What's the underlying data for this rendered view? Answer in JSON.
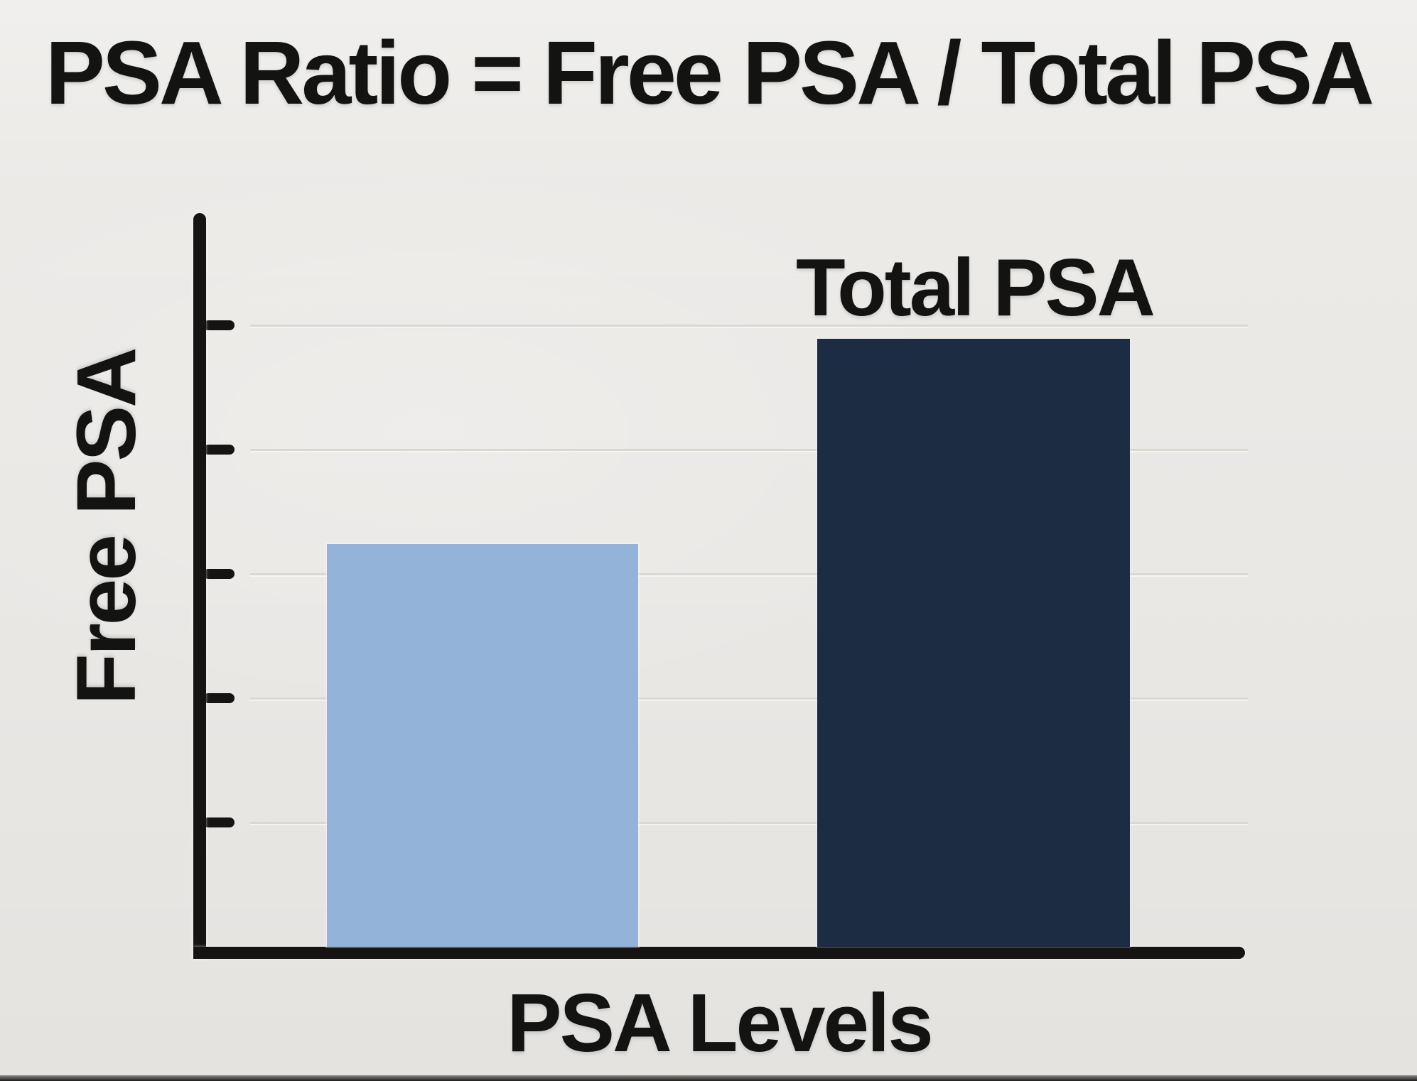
{
  "title": "PSA Ratio = Free PSA / Total PSA",
  "labels": {
    "total_psa_bar_label": "Total PSA",
    "y_axis_label": "Free PSA",
    "x_axis_label": "PSA Levels"
  },
  "colors": {
    "background": "#ECEAE7",
    "axis": "#151413",
    "gridline": "#DBD8D2",
    "free_psa_bar": "#93B3D8",
    "total_psa_bar": "#1C2C42",
    "text": "#131312"
  },
  "chart_data": {
    "type": "bar",
    "title": "PSA Ratio = Free PSA / Total PSA",
    "xlabel": "PSA Levels",
    "ylabel": "Free PSA",
    "categories": [
      "Free PSA",
      "Total PSA"
    ],
    "values": [
      3.24,
      4.89
    ],
    "bar_colors": [
      "#93B3D8",
      "#1C2C42"
    ],
    "bar_top_labels": [
      "",
      "Total PSA"
    ],
    "ylim": [
      0,
      5.9
    ],
    "ytick_values": [
      1,
      2,
      3,
      4,
      5
    ],
    "ytick_labels_visible": false,
    "xtick_labels_visible": false,
    "grid": true,
    "legend": "none"
  }
}
